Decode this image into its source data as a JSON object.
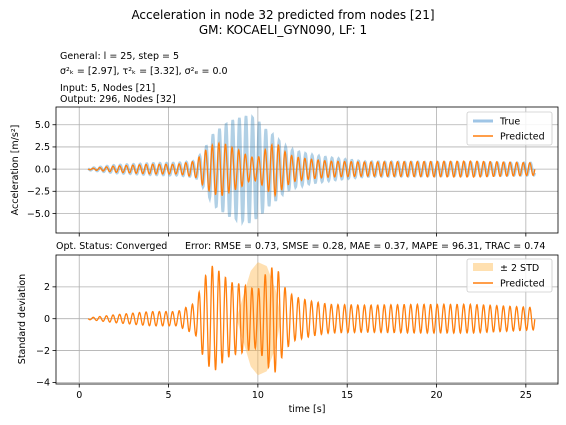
{
  "figure": {
    "title_line1": "Acceleration in node 32 predicted from nodes [21]",
    "title_line2": "GM: KOCAELI_GYN090, LF: 1",
    "info_general": "General: l = 25, step = 5",
    "info_sigma": "σ²ₖ = [2.97], τ²ₖ = [3.32], σ²ₑ = 0.0",
    "info_input": "Input: 5, Nodes [21]",
    "info_output": "Output: 296, Nodes [32]",
    "status_left": "Opt. Status: Converged",
    "status_right": "Error: RMSE = 0.73, SMSE = 0.28, MAE = 0.37, MAPE = 96.31, TRAC = 0.74"
  },
  "colors": {
    "true_series": "#1f77b4",
    "predicted_series": "#ff7f0e",
    "std_band": "#ffbb55",
    "grid": "#b0b0b0"
  },
  "chart_data": [
    {
      "type": "line",
      "ylabel": "Acceleration [m/s²]",
      "xlim": [
        -1.3,
        26.8
      ],
      "ylim": [
        -7.2,
        7.0
      ],
      "yticks": [
        -5.0,
        -2.5,
        0.0,
        2.5,
        5.0
      ],
      "ytick_labels": [
        "−5.0",
        "−2.5",
        "0.0",
        "2.5",
        "5.0"
      ],
      "grid": true,
      "legend_position": "top-right",
      "series": [
        {
          "name": "True",
          "x": [
            0.5,
            2,
            4,
            5.5,
            6.5,
            7.0,
            7.5,
            8.0,
            8.5,
            9.0,
            9.5,
            10.0,
            10.5,
            11.0,
            11.5,
            12.0,
            13.0,
            14.0,
            16.0,
            19.0,
            22.0,
            25.5
          ],
          "envelope": [
            0.1,
            0.45,
            0.65,
            0.7,
            0.9,
            2.2,
            4.0,
            4.8,
            5.5,
            5.8,
            6.1,
            5.5,
            4.4,
            3.6,
            2.6,
            2.1,
            1.6,
            1.3,
            0.85,
            0.8,
            0.75,
            0.7
          ]
        },
        {
          "name": "Predicted",
          "x": [
            0.5,
            2,
            4,
            5.5,
            6.5,
            7.0,
            7.5,
            8.0,
            8.5,
            9.0,
            9.5,
            10.0,
            10.5,
            11.0,
            11.5,
            12.0,
            13.0,
            14.0,
            16.0,
            19.0,
            22.0,
            25.5
          ],
          "envelope": [
            0.05,
            0.35,
            0.55,
            0.55,
            0.9,
            2.0,
            2.8,
            3.0,
            2.5,
            2.1,
            1.4,
            1.3,
            2.4,
            3.0,
            2.0,
            1.4,
            1.1,
            0.9,
            0.8,
            0.85,
            0.9,
            0.7
          ]
        }
      ]
    },
    {
      "type": "line",
      "xlabel": "time [s]",
      "ylabel": "Standard deviation",
      "xlim": [
        -1.3,
        26.8
      ],
      "ylim": [
        -4.1,
        4.0
      ],
      "xticks": [
        0,
        5,
        10,
        15,
        20,
        25
      ],
      "yticks": [
        -4,
        -2,
        0,
        2
      ],
      "ytick_labels": [
        "−4",
        "−2",
        "0",
        "2"
      ],
      "grid": true,
      "legend_position": "top-right",
      "series": [
        {
          "name": "± 2 STD",
          "x": [
            8.8,
            9.2,
            9.6,
            10.0,
            10.5,
            11.0,
            11.3
          ],
          "half_width": [
            0.0,
            1.5,
            3.0,
            3.55,
            3.3,
            1.8,
            0.0
          ]
        },
        {
          "name": "Predicted",
          "x": [
            0.5,
            2,
            4,
            5.5,
            6.5,
            7.0,
            7.5,
            8.0,
            8.5,
            9.0,
            9.5,
            10.0,
            10.5,
            11.0,
            11.5,
            12.0,
            13.0,
            14.0,
            16.0,
            19.0,
            22.0,
            25.5
          ],
          "envelope": [
            0.05,
            0.25,
            0.45,
            0.45,
            1.0,
            2.6,
            3.4,
            2.8,
            2.3,
            2.2,
            2.0,
            1.8,
            3.0,
            3.4,
            2.0,
            1.4,
            1.1,
            0.9,
            0.85,
            0.9,
            0.9,
            0.7
          ]
        }
      ]
    }
  ]
}
